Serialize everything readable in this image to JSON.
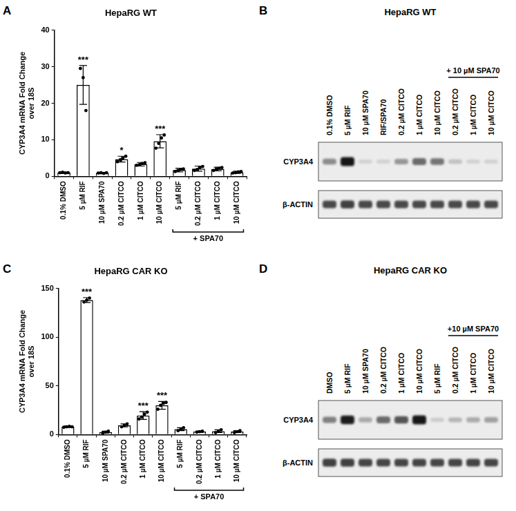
{
  "chart_data": [
    {
      "type": "bar",
      "panel": "A",
      "title": "HepaRG WT",
      "y_label": [
        "CYP3A4 mRNA Fold Change",
        "over 18S"
      ],
      "categories": [
        "0.1% DMSO",
        "5 µM RIF",
        "10 µM SPA70",
        "0.2 µM CITCO",
        "1 µM CITCO",
        "10 µM CITCO",
        "5 µM RIF",
        "0.2 µM CITCO",
        "1 µM CITCO",
        "10 µM CITCO"
      ],
      "values": [
        1.0,
        25.0,
        0.9,
        4.7,
        3.3,
        9.6,
        1.7,
        2.1,
        2.0,
        1.1
      ],
      "errors": [
        0.2,
        5.3,
        0.2,
        0.8,
        0.5,
        1.8,
        0.5,
        0.7,
        0.5,
        0.3
      ],
      "points": [
        [
          1.0,
          1.1,
          0.9,
          1.0
        ],
        [
          29.5,
          27,
          18
        ],
        [
          0.9,
          1.0,
          0.8,
          1.0
        ],
        [
          4.0,
          4.5,
          5.0,
          5.5
        ],
        [
          3.0,
          3.2,
          3.5,
          3.7
        ],
        [
          7.7,
          9.0,
          10.5,
          11.3
        ],
        [
          1.3,
          1.6,
          1.9,
          2.0
        ],
        [
          1.6,
          1.9,
          2.4,
          2.7
        ],
        [
          1.6,
          2.0,
          2.2,
          2.4
        ],
        [
          0.9,
          1.0,
          1.2,
          1.3
        ]
      ],
      "significance": [
        null,
        "***",
        null,
        "*",
        null,
        "***",
        null,
        null,
        null,
        null
      ],
      "group_label": {
        "text": "+ SPA70",
        "from": 6,
        "to": 9
      },
      "color": "#ffffff",
      "marker": "circle",
      "ylim": [
        0,
        40
      ],
      "yticks": [
        0,
        10,
        20,
        30,
        40
      ],
      "grid": false
    },
    {
      "type": "bar",
      "panel": "C",
      "title": "HepaRG CAR KO",
      "y_label": [
        "CYP3A4 mRNA Fold Change",
        "over 18S"
      ],
      "categories": [
        "0.1% DMSO",
        "5 µM RIF",
        "10 µM SPA70",
        "0.2 µM CITCO",
        "1 µM CITCO",
        "10 µM CITCO",
        "5 µM RIF",
        "0.2 µM CITCO",
        "1 µM CITCO",
        "10 µM CITCO"
      ],
      "values": [
        8.0,
        138.0,
        2.5,
        9.5,
        19.5,
        30.0,
        5.5,
        3.0,
        3.5,
        3.0
      ],
      "errors": [
        0.8,
        2.5,
        1.0,
        1.5,
        4.0,
        4.0,
        1.5,
        0.7,
        1.5,
        1.0
      ],
      "points": [
        [
          7.5,
          8,
          8.5,
          8
        ],
        [
          136,
          138,
          140
        ],
        [
          1.5,
          2.5,
          3.5
        ],
        [
          8,
          9.5,
          11
        ],
        [
          16,
          18,
          21,
          23
        ],
        [
          26,
          30,
          32,
          33
        ],
        [
          4,
          5.5,
          7
        ],
        [
          2.5,
          3,
          3.5
        ],
        [
          2,
          3.5,
          5
        ],
        [
          2,
          3,
          4
        ]
      ],
      "significance": [
        null,
        "***",
        null,
        null,
        "***",
        "***",
        null,
        null,
        null,
        null
      ],
      "group_label": {
        "text": "+ SPA70",
        "from": 6,
        "to": 9
      },
      "color": "#ffffff",
      "marker": "circle",
      "ylim": [
        0,
        150
      ],
      "yticks": [
        0,
        50,
        100,
        150
      ],
      "grid": false
    }
  ],
  "blots": [
    {
      "panel": "B",
      "title": "HepaRG WT",
      "lanes": [
        "0.1% DMSO",
        "5 µM RIF",
        "10 µM SPA70",
        "RIF/SPA70",
        "0.2 µM CITCO",
        "1 µM CITCO",
        "10 µM CITCO",
        "0.2 µM CITCO",
        "1 µM CITCO",
        "10 µM CITCO"
      ],
      "group_label": {
        "text": "+ 10 µM SPA70",
        "from": 7,
        "to": 9
      },
      "rows": [
        {
          "label": "CYP3A4",
          "intensity": [
            0.45,
            1.0,
            0.12,
            0.12,
            0.4,
            0.6,
            0.55,
            0.2,
            0.12,
            0.12
          ]
        },
        {
          "label": "β-ACTIN",
          "intensity": [
            0.75,
            0.8,
            0.75,
            0.75,
            0.75,
            0.75,
            0.75,
            0.75,
            0.75,
            0.75
          ]
        }
      ]
    },
    {
      "panel": "D",
      "title": "HepaRG CAR KO",
      "lanes": [
        "DMSO",
        "5 µM RIF",
        "10 µM SPA70",
        "0.2 µM CITCO",
        "1 µM CITCO",
        "10 µM CITCO",
        "5 µM RIF",
        "0.2 µM CITCO",
        "1 µM CITCO",
        "10 µM CITCO"
      ],
      "group_label": {
        "text": "+10 µM SPA70",
        "from": 7,
        "to": 9
      },
      "rows": [
        {
          "label": "CYP3A4",
          "intensity": [
            0.5,
            0.95,
            0.3,
            0.6,
            0.7,
            1.0,
            0.15,
            0.25,
            0.3,
            0.35
          ]
        },
        {
          "label": "β-ACTIN",
          "intensity": [
            0.8,
            0.8,
            0.78,
            0.78,
            0.78,
            0.78,
            0.78,
            0.78,
            0.78,
            0.78
          ]
        }
      ]
    }
  ]
}
